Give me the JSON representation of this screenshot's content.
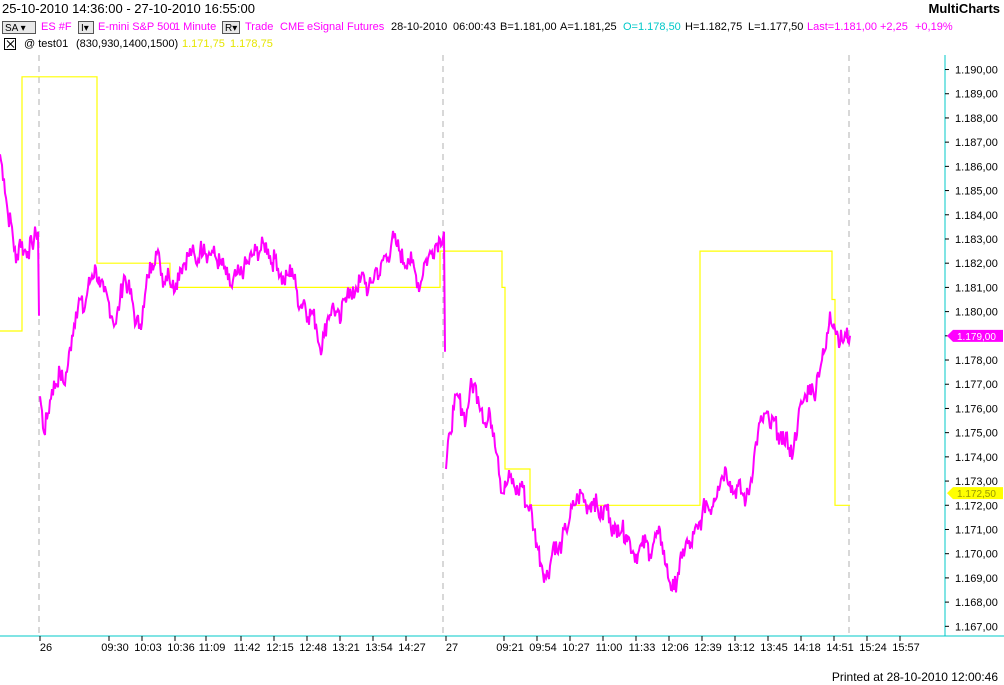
{
  "header": {
    "date_range": "25-10-2010 14:36:00 - 27-10-2010 16:55:00",
    "brand": "MultiCharts"
  },
  "infobar": {
    "sa_button": "SA",
    "sa_arrow": "▾",
    "i_button": "I▾",
    "symbol": "ES #F",
    "description": "E-mini S&P 500",
    "interval": "1 Minute",
    "r_button": "R▾",
    "data_type": "Trade",
    "exchange": "CME",
    "feed": "eSignal",
    "category": "Futures",
    "date": "28-10-2010",
    "time": "06:00:43",
    "bid": "B=1.181,00",
    "ask": "A=1.181,25",
    "open": "O=1.178,50",
    "high": "H=1.182,75",
    "low": "L=1.177,50",
    "last": "Last=1.181,00",
    "change": "+2,25",
    "change_pct": "+0,19%"
  },
  "study": {
    "name": "@ test01",
    "params": "(830,930,1400,1500)",
    "value1": "1.171,75",
    "value2": "1.178,75"
  },
  "colors": {
    "price": "#ff00ff",
    "study": "#ffff00",
    "study_text": "#e6e600",
    "axis": "#00c8c8",
    "open_text": "#00c8c8"
  },
  "price_tag": "1.179,00",
  "study_tag": "1.172,50",
  "footer": "Printed at 28-10-2010 12:00:46",
  "chart_data": {
    "type": "line",
    "y_axis_labels": [
      "1.190,00",
      "1.189,00",
      "1.188,00",
      "1.187,00",
      "1.186,00",
      "1.185,00",
      "1.184,00",
      "1.183,00",
      "1.182,00",
      "1.181,00",
      "1.180,00",
      "1.179,00",
      "1.178,00",
      "1.177,00",
      "1.176,00",
      "1.175,00",
      "1.174,00",
      "1.173,00",
      "1.172,00",
      "1.171,00",
      "1.170,00",
      "1.169,00",
      "1.168,00",
      "1.167,00"
    ],
    "y_axis_values": [
      1190,
      1189,
      1188,
      1187,
      1186,
      1185,
      1184,
      1183,
      1182,
      1181,
      1180,
      1179,
      1178,
      1177,
      1176,
      1175,
      1174,
      1173,
      1172,
      1171,
      1170,
      1169,
      1168,
      1167
    ],
    "ylim": [
      1166.6,
      1190.6
    ],
    "x_tick_labels": [
      "26",
      "09:30",
      "10:03",
      "10:36",
      "11:09",
      "11:42",
      "12:15",
      "12:48",
      "13:21",
      "13:54",
      "14:27",
      "27",
      "09:21",
      "09:54",
      "10:27",
      "11:00",
      "11:33",
      "12:06",
      "12:39",
      "13:12",
      "13:45",
      "14:18",
      "14:51",
      "15:24",
      "15:57"
    ],
    "day_separator_labels": [
      "26",
      "27"
    ],
    "series": [
      {
        "points": [
          [
            0,
            1186.5
          ],
          [
            4,
            1185.5
          ],
          [
            8,
            1184
          ],
          [
            12,
            1183.5
          ],
          [
            16,
            1182
          ],
          [
            20,
            1183
          ],
          [
            24,
            1182.5
          ],
          [
            28,
            1182.5
          ],
          [
            32,
            1182.8
          ],
          [
            36,
            1183.2
          ],
          [
            38,
            1183.3
          ],
          [
            40,
            1176.5
          ],
          [
            44,
            1175
          ],
          [
            48,
            1175.8
          ],
          [
            52,
            1176.8
          ],
          [
            56,
            1177
          ],
          [
            60,
            1177.5
          ],
          [
            64,
            1177
          ],
          [
            68,
            1177.8
          ],
          [
            72,
            1179
          ],
          [
            76,
            1180
          ],
          [
            80,
            1180.5
          ],
          [
            84,
            1180
          ],
          [
            88,
            1181
          ],
          [
            92,
            1181.5
          ],
          [
            96,
            1181.8
          ],
          [
            100,
            1181
          ],
          [
            104,
            1180.8
          ],
          [
            108,
            1180.5
          ],
          [
            112,
            1179.8
          ],
          [
            116,
            1179.5
          ],
          [
            120,
            1180.5
          ],
          [
            124,
            1181.5
          ],
          [
            128,
            1181
          ],
          [
            132,
            1180.5
          ],
          [
            136,
            1179.5
          ],
          [
            140,
            1179.5
          ],
          [
            144,
            1180.2
          ],
          [
            148,
            1181.5
          ],
          [
            152,
            1182
          ],
          [
            156,
            1182.5
          ],
          [
            160,
            1182
          ],
          [
            164,
            1181.2
          ],
          [
            168,
            1181.8
          ],
          [
            172,
            1181
          ],
          [
            176,
            1181.2
          ],
          [
            180,
            1181.8
          ],
          [
            184,
            1182
          ],
          [
            188,
            1182.3
          ],
          [
            192,
            1182.5
          ],
          [
            196,
            1182
          ],
          [
            200,
            1182.5
          ],
          [
            204,
            1182.8
          ],
          [
            208,
            1182.3
          ],
          [
            212,
            1182.5
          ],
          [
            216,
            1182.2
          ],
          [
            220,
            1182
          ],
          [
            224,
            1181.8
          ],
          [
            228,
            1181.3
          ],
          [
            232,
            1181
          ],
          [
            236,
            1181.5
          ],
          [
            240,
            1181.5
          ],
          [
            244,
            1181.8
          ],
          [
            248,
            1182
          ],
          [
            252,
            1182.3
          ],
          [
            256,
            1182.5
          ],
          [
            260,
            1182.5
          ],
          [
            264,
            1182.8
          ],
          [
            268,
            1182.6
          ],
          [
            272,
            1182
          ],
          [
            276,
            1182.3
          ],
          [
            280,
            1181.5
          ],
          [
            284,
            1181.2
          ],
          [
            288,
            1181.5
          ],
          [
            292,
            1181.8
          ],
          [
            296,
            1181
          ],
          [
            300,
            1180.2
          ],
          [
            304,
            1180.5
          ],
          [
            308,
            1179.8
          ],
          [
            312,
            1180
          ],
          [
            316,
            1179.5
          ],
          [
            320,
            1178.5
          ],
          [
            324,
            1179
          ],
          [
            328,
            1179.8
          ],
          [
            332,
            1180.2
          ],
          [
            336,
            1180
          ],
          [
            340,
            1179.5
          ],
          [
            344,
            1180.5
          ],
          [
            348,
            1181
          ],
          [
            352,
            1180.5
          ],
          [
            356,
            1181
          ],
          [
            360,
            1181.2
          ],
          [
            364,
            1181.5
          ],
          [
            368,
            1180.8
          ],
          [
            372,
            1181.2
          ],
          [
            376,
            1181.8
          ],
          [
            380,
            1181.5
          ],
          [
            384,
            1182.3
          ],
          [
            388,
            1182.2
          ],
          [
            392,
            1183
          ],
          [
            396,
            1182.8
          ],
          [
            400,
            1182.5
          ],
          [
            404,
            1182
          ],
          [
            408,
            1182.2
          ],
          [
            412,
            1182
          ],
          [
            416,
            1181.5
          ],
          [
            420,
            1181
          ],
          [
            424,
            1182
          ],
          [
            428,
            1182.2
          ],
          [
            432,
            1182.5
          ],
          [
            436,
            1182.8
          ],
          [
            440,
            1183
          ],
          [
            444,
            1183.3
          ],
          [
            446,
            1173.5
          ],
          [
            450,
            1175
          ],
          [
            454,
            1176
          ],
          [
            458,
            1176.5
          ],
          [
            462,
            1176
          ],
          [
            466,
            1175.5
          ],
          [
            470,
            1176.8
          ],
          [
            474,
            1177
          ],
          [
            478,
            1176.5
          ],
          [
            482,
            1176
          ],
          [
            486,
            1175.2
          ],
          [
            490,
            1175.8
          ],
          [
            494,
            1175
          ],
          [
            498,
            1174
          ],
          [
            502,
            1172.5
          ],
          [
            506,
            1172.8
          ],
          [
            510,
            1173.2
          ],
          [
            514,
            1172.8
          ],
          [
            518,
            1172.5
          ],
          [
            522,
            1173
          ],
          [
            526,
            1172
          ],
          [
            530,
            1172
          ],
          [
            534,
            1171
          ],
          [
            538,
            1170.2
          ],
          [
            542,
            1169.5
          ],
          [
            546,
            1169
          ],
          [
            550,
            1169.5
          ],
          [
            554,
            1170.5
          ],
          [
            558,
            1170
          ],
          [
            562,
            1170.5
          ],
          [
            566,
            1171
          ],
          [
            570,
            1171.5
          ],
          [
            574,
            1172
          ],
          [
            578,
            1172.3
          ],
          [
            582,
            1172.5
          ],
          [
            586,
            1172
          ],
          [
            590,
            1172
          ],
          [
            594,
            1172.3
          ],
          [
            598,
            1171.8
          ],
          [
            602,
            1171.5
          ],
          [
            606,
            1172
          ],
          [
            610,
            1171.5
          ],
          [
            614,
            1170.8
          ],
          [
            618,
            1171.2
          ],
          [
            622,
            1171
          ],
          [
            626,
            1170.8
          ],
          [
            630,
            1170.5
          ],
          [
            634,
            1170
          ],
          [
            638,
            1170
          ],
          [
            642,
            1170.3
          ],
          [
            646,
            1170.5
          ],
          [
            650,
            1170
          ],
          [
            654,
            1170.5
          ],
          [
            658,
            1170.8
          ],
          [
            662,
            1170.5
          ],
          [
            666,
            1169.5
          ],
          [
            670,
            1168.8
          ],
          [
            674,
            1168.5
          ],
          [
            678,
            1169.2
          ],
          [
            682,
            1169.8
          ],
          [
            686,
            1170.5
          ],
          [
            690,
            1170.2
          ],
          [
            694,
            1170.8
          ],
          [
            698,
            1171
          ],
          [
            702,
            1171.5
          ],
          [
            706,
            1172.2
          ],
          [
            710,
            1171.8
          ],
          [
            714,
            1172.3
          ],
          [
            718,
            1172.8
          ],
          [
            722,
            1173.2
          ],
          [
            726,
            1173.5
          ],
          [
            730,
            1173
          ],
          [
            734,
            1172.5
          ],
          [
            738,
            1172.8
          ],
          [
            742,
            1172.5
          ],
          [
            746,
            1172.2
          ],
          [
            750,
            1172.8
          ],
          [
            754,
            1174
          ],
          [
            758,
            1175
          ],
          [
            762,
            1175.5
          ],
          [
            766,
            1175.8
          ],
          [
            770,
            1175.2
          ],
          [
            774,
            1175.5
          ],
          [
            778,
            1175
          ],
          [
            782,
            1174.5
          ],
          [
            786,
            1175
          ],
          [
            790,
            1174
          ],
          [
            794,
            1174.5
          ],
          [
            798,
            1175.5
          ],
          [
            802,
            1176.2
          ],
          [
            806,
            1176.5
          ],
          [
            810,
            1177
          ],
          [
            814,
            1176.5
          ],
          [
            818,
            1177.5
          ],
          [
            822,
            1178
          ],
          [
            826,
            1178.5
          ],
          [
            830,
            1180
          ],
          [
            834,
            1179.5
          ],
          [
            838,
            1179
          ],
          [
            842,
            1178.8
          ],
          [
            846,
            1179
          ],
          [
            850,
            1179
          ]
        ]
      },
      {
        "steps": [
          [
            0,
            1179.2
          ],
          [
            22,
            1179.2
          ],
          [
            22,
            1189.7
          ],
          [
            97,
            1189.7
          ],
          [
            97,
            1182
          ],
          [
            170,
            1182
          ],
          [
            170,
            1181
          ],
          [
            440,
            1181
          ],
          [
            440,
            1182.5
          ],
          [
            502,
            1182.5
          ],
          [
            502,
            1181
          ],
          [
            505,
            1181
          ],
          [
            505,
            1173.5
          ],
          [
            530,
            1173.5
          ],
          [
            530,
            1172
          ],
          [
            700,
            1172
          ],
          [
            700,
            1182.5
          ],
          [
            832,
            1182.5
          ],
          [
            832,
            1180.5
          ],
          [
            835,
            1180.5
          ],
          [
            835,
            1172
          ],
          [
            850,
            1172
          ]
        ]
      }
    ]
  }
}
